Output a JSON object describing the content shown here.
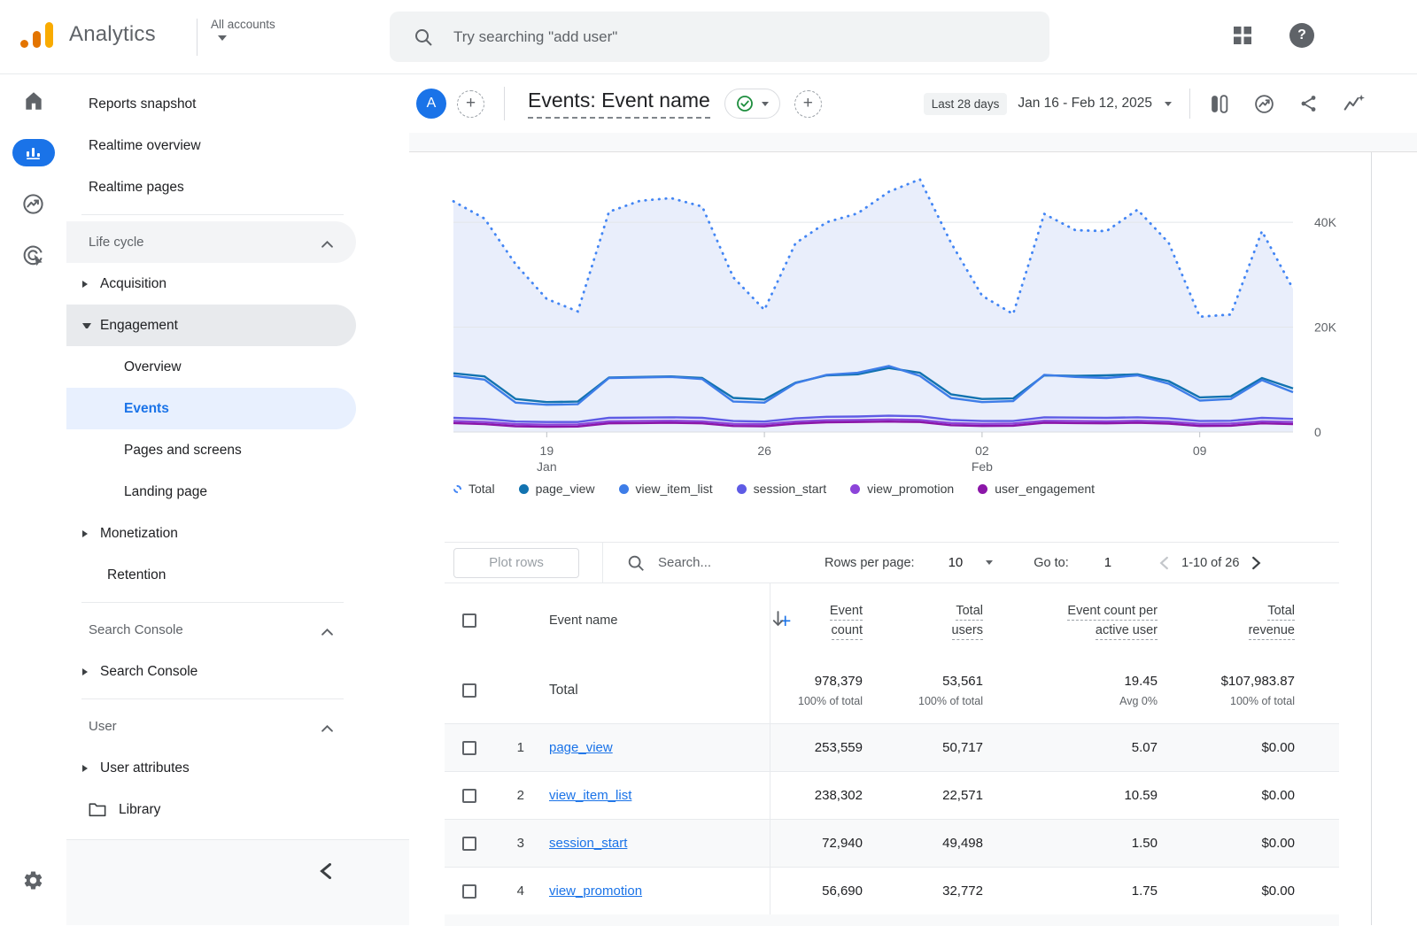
{
  "topbar": {
    "brand": "Analytics",
    "account_switcher": "All accounts",
    "search_placeholder": "Try searching \"add user\""
  },
  "rail": {
    "icons": [
      "home",
      "reports",
      "explore",
      "advertising",
      "settings"
    ],
    "active": "reports"
  },
  "sidebar": {
    "items": [
      {
        "kind": "link",
        "label": "Reports snapshot"
      },
      {
        "kind": "link",
        "label": "Realtime overview"
      },
      {
        "kind": "link",
        "label": "Realtime pages"
      },
      {
        "kind": "divider"
      },
      {
        "kind": "section",
        "label": "Life cycle",
        "bg": true
      },
      {
        "kind": "expand",
        "label": "Acquisition",
        "state": "collapsed"
      },
      {
        "kind": "expand",
        "label": "Engagement",
        "state": "expanded",
        "highlighted": true
      },
      {
        "kind": "child",
        "label": "Overview"
      },
      {
        "kind": "child",
        "label": "Events",
        "active": true
      },
      {
        "kind": "child",
        "label": "Pages and screens"
      },
      {
        "kind": "child",
        "label": "Landing page"
      },
      {
        "kind": "expand",
        "label": "Monetization",
        "state": "collapsed"
      },
      {
        "kind": "item2",
        "label": "Retention"
      },
      {
        "kind": "divider"
      },
      {
        "kind": "section",
        "label": "Search Console"
      },
      {
        "kind": "expand",
        "label": "Search Console",
        "state": "collapsed"
      },
      {
        "kind": "divider"
      },
      {
        "kind": "section",
        "label": "User"
      },
      {
        "kind": "expand",
        "label": "User attributes",
        "state": "collapsed"
      },
      {
        "kind": "folder",
        "label": "Library"
      }
    ]
  },
  "report_header": {
    "avatar": "A",
    "title": "Events: Event name",
    "date_preset": "Last 28 days",
    "date_range": "Jan 16 - Feb 12, 2025"
  },
  "chart_data": {
    "type": "line",
    "days": 28,
    "grid": true,
    "legend_position": "bottom",
    "ylim": [
      0,
      52000
    ],
    "yticks": [
      {
        "value": 0,
        "label": "0"
      },
      {
        "value": 20000,
        "label": "20K"
      },
      {
        "value": 40000,
        "label": "40K"
      }
    ],
    "xticks": [
      {
        "index": 3,
        "lines": [
          "19",
          "Jan"
        ]
      },
      {
        "index": 10,
        "lines": [
          "26"
        ]
      },
      {
        "index": 17,
        "lines": [
          "02",
          "Feb"
        ]
      },
      {
        "index": 24,
        "lines": [
          "09"
        ]
      }
    ],
    "total": {
      "name": "Total",
      "color": "#4285f4",
      "dashed": true,
      "area_fill": "#e9eefb",
      "values": [
        44000,
        40700,
        32000,
        25400,
        23000,
        42000,
        44100,
        44600,
        43000,
        29500,
        23300,
        36000,
        40000,
        41700,
        45800,
        48200,
        36100,
        26000,
        22500,
        41600,
        38500,
        38300,
        42400,
        36100,
        22000,
        22400,
        38300,
        27300
      ]
    },
    "series": [
      {
        "name": "page_view",
        "color": "#1273b0",
        "values": [
          11200,
          10600,
          6300,
          5700,
          5800,
          10400,
          10500,
          10600,
          10300,
          6500,
          6200,
          9400,
          10800,
          11000,
          12200,
          11300,
          7200,
          6300,
          6400,
          10800,
          10700,
          10800,
          11000,
          9700,
          6600,
          6800,
          10300,
          8300
        ]
      },
      {
        "name": "view_item_list",
        "color": "#3e7de8",
        "values": [
          10700,
          10000,
          5600,
          5200,
          5300,
          10300,
          10400,
          10500,
          10100,
          5800,
          5600,
          9300,
          10900,
          11300,
          12600,
          10700,
          6500,
          5700,
          5900,
          10900,
          10500,
          10300,
          10800,
          9200,
          6000,
          6300,
          9900,
          7600
        ]
      },
      {
        "name": "session_start",
        "color": "#5e5be5",
        "values": [
          2700,
          2500,
          2000,
          1900,
          1900,
          2700,
          2750,
          2800,
          2700,
          2100,
          2000,
          2600,
          2900,
          2950,
          3100,
          3000,
          2300,
          2100,
          2100,
          2800,
          2750,
          2700,
          2800,
          2600,
          2100,
          2150,
          2700,
          2500
        ]
      },
      {
        "name": "view_promotion",
        "color": "#8c44d9",
        "values": [
          2100,
          1900,
          1500,
          1400,
          1450,
          2050,
          2100,
          2150,
          2050,
          1550,
          1500,
          2000,
          2250,
          2300,
          2400,
          2300,
          1700,
          1550,
          1600,
          2150,
          2100,
          2050,
          2150,
          2000,
          1550,
          1600,
          2050,
          1900
        ]
      },
      {
        "name": "user_engagement",
        "color": "#8b16a8",
        "values": [
          1700,
          1500,
          1100,
          1000,
          1050,
          1650,
          1700,
          1750,
          1650,
          1150,
          1100,
          1600,
          1850,
          1900,
          2000,
          1900,
          1300,
          1150,
          1200,
          1750,
          1700,
          1650,
          1750,
          1600,
          1150,
          1200,
          1650,
          1500
        ]
      }
    ]
  },
  "table": {
    "controls": {
      "plot_rows": "Plot rows",
      "search_placeholder": "Search...",
      "rows_per_page_label": "Rows per page:",
      "rows_per_page_value": "10",
      "goto_label": "Go to:",
      "goto_value": "1",
      "pagination": "1-10 of 26"
    },
    "columns": [
      {
        "label": "Event name",
        "add_button": "+"
      },
      {
        "lines": [
          "Event",
          "count"
        ],
        "sorted": "desc"
      },
      {
        "lines": [
          "Total",
          "users"
        ]
      },
      {
        "lines": [
          "Event count per",
          "active user"
        ]
      },
      {
        "lines": [
          "Total",
          "revenue"
        ]
      }
    ],
    "total_row": {
      "label": "Total",
      "values": [
        "978,379",
        "53,561",
        "19.45",
        "$107,983.87"
      ],
      "subs": [
        "100% of total",
        "100% of total",
        "Avg 0%",
        "100% of total"
      ]
    },
    "rows": [
      {
        "index": "1",
        "name": "page_view",
        "values": [
          "253,559",
          "50,717",
          "5.07",
          "$0.00"
        ]
      },
      {
        "index": "2",
        "name": "view_item_list",
        "values": [
          "238,302",
          "22,571",
          "10.59",
          "$0.00"
        ]
      },
      {
        "index": "3",
        "name": "session_start",
        "values": [
          "72,940",
          "49,498",
          "1.50",
          "$0.00"
        ]
      },
      {
        "index": "4",
        "name": "view_promotion",
        "values": [
          "56,690",
          "32,772",
          "1.75",
          "$0.00"
        ]
      }
    ]
  }
}
